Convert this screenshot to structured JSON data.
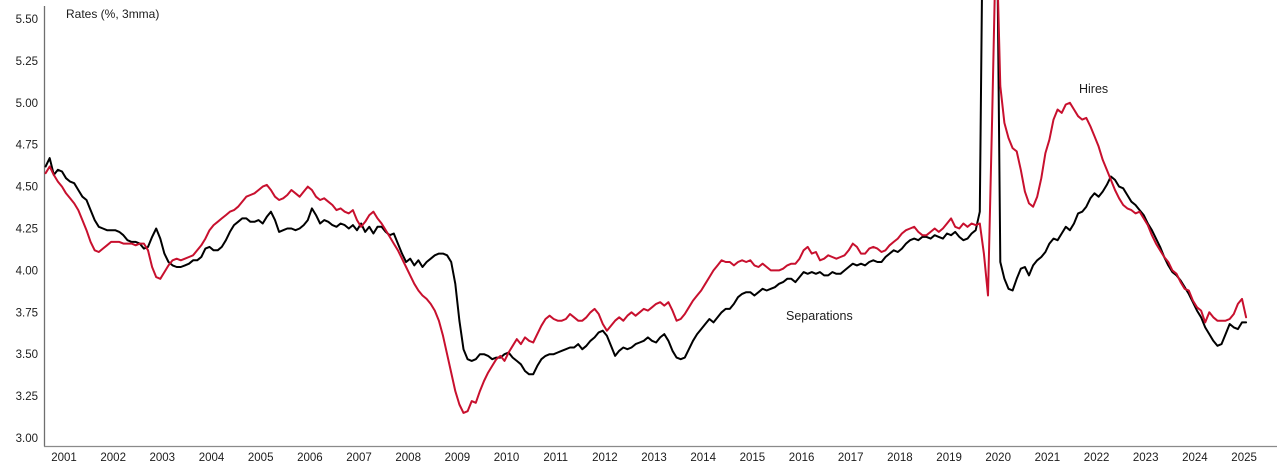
{
  "chart_data": {
    "type": "line",
    "title": "Rates (%, 3mma)",
    "frequency": "monthly",
    "start": {
      "year": 2001,
      "month": 2
    },
    "end": {
      "year": 2025,
      "month": 7
    },
    "x_tick_years": [
      "2001",
      "2002",
      "2003",
      "2004",
      "2005",
      "2006",
      "2007",
      "2008",
      "2009",
      "2010",
      "2011",
      "2012",
      "2013",
      "2014",
      "2015",
      "2016",
      "2017",
      "2018",
      "2019",
      "2020",
      "2021",
      "2022",
      "2023",
      "2024",
      "2025"
    ],
    "y_axis": {
      "min": 3.0,
      "max": 5.5,
      "tick_step": 0.25,
      "tick_labels": [
        "3.00",
        "3.25",
        "3.50",
        "3.75",
        "4.00",
        "4.25",
        "4.50",
        "4.75",
        "5.00",
        "5.25",
        "5.50"
      ]
    },
    "legend_position": "inline-annotations",
    "grid": false,
    "series": [
      {
        "name": "Hires",
        "color": "#c8102e",
        "values": [
          4.58,
          4.62,
          4.57,
          4.53,
          4.5,
          4.46,
          4.43,
          4.4,
          4.36,
          4.3,
          4.24,
          4.17,
          4.12,
          4.11,
          4.13,
          4.15,
          4.17,
          4.17,
          4.17,
          4.16,
          4.16,
          4.16,
          4.15,
          4.16,
          4.16,
          4.12,
          4.02,
          3.96,
          3.95,
          3.99,
          4.03,
          4.06,
          4.07,
          4.06,
          4.07,
          4.08,
          4.09,
          4.12,
          4.15,
          4.19,
          4.24,
          4.27,
          4.29,
          4.31,
          4.33,
          4.35,
          4.36,
          4.38,
          4.41,
          4.44,
          4.45,
          4.46,
          4.48,
          4.5,
          4.51,
          4.48,
          4.44,
          4.42,
          4.43,
          4.45,
          4.48,
          4.46,
          4.44,
          4.47,
          4.5,
          4.48,
          4.44,
          4.42,
          4.43,
          4.41,
          4.39,
          4.36,
          4.37,
          4.35,
          4.34,
          4.36,
          4.3,
          4.26,
          4.29,
          4.33,
          4.35,
          4.31,
          4.28,
          4.24,
          4.2,
          4.16,
          4.12,
          4.07,
          4.02,
          3.97,
          3.92,
          3.88,
          3.85,
          3.83,
          3.8,
          3.76,
          3.7,
          3.61,
          3.5,
          3.39,
          3.28,
          3.2,
          3.15,
          3.16,
          3.22,
          3.21,
          3.28,
          3.34,
          3.39,
          3.43,
          3.47,
          3.49,
          3.46,
          3.51,
          3.55,
          3.59,
          3.56,
          3.6,
          3.58,
          3.57,
          3.62,
          3.67,
          3.71,
          3.73,
          3.71,
          3.7,
          3.7,
          3.71,
          3.74,
          3.72,
          3.7,
          3.7,
          3.72,
          3.75,
          3.77,
          3.74,
          3.68,
          3.64,
          3.67,
          3.7,
          3.72,
          3.7,
          3.73,
          3.75,
          3.73,
          3.75,
          3.77,
          3.76,
          3.78,
          3.8,
          3.81,
          3.79,
          3.81,
          3.76,
          3.7,
          3.71,
          3.74,
          3.78,
          3.82,
          3.85,
          3.88,
          3.92,
          3.96,
          4.0,
          4.03,
          4.06,
          4.05,
          4.05,
          4.03,
          4.05,
          4.06,
          4.05,
          4.06,
          4.03,
          4.02,
          4.04,
          4.02,
          4.0,
          4.0,
          4.0,
          4.01,
          4.03,
          4.04,
          4.04,
          4.07,
          4.12,
          4.14,
          4.1,
          4.11,
          4.06,
          4.07,
          4.09,
          4.08,
          4.07,
          4.08,
          4.09,
          4.12,
          4.16,
          4.14,
          4.1,
          4.1,
          4.13,
          4.14,
          4.13,
          4.11,
          4.12,
          4.15,
          4.17,
          4.19,
          4.22,
          4.24,
          4.25,
          4.26,
          4.23,
          4.21,
          4.21,
          4.23,
          4.25,
          4.23,
          4.25,
          4.28,
          4.31,
          4.26,
          4.25,
          4.28,
          4.26,
          4.28,
          4.27,
          4.28,
          4.1,
          3.85,
          4.9,
          6.05,
          5.1,
          4.88,
          4.79,
          4.73,
          4.71,
          4.6,
          4.47,
          4.4,
          4.38,
          4.44,
          4.55,
          4.7,
          4.78,
          4.9,
          4.96,
          4.94,
          4.99,
          5.0,
          4.96,
          4.92,
          4.9,
          4.91,
          4.86,
          4.8,
          4.74,
          4.66,
          4.6,
          4.54,
          4.48,
          4.43,
          4.39,
          4.37,
          4.36,
          4.34,
          4.35,
          4.31,
          4.27,
          4.21,
          4.16,
          4.12,
          4.08,
          4.05,
          4.0,
          3.98,
          3.93,
          3.89,
          3.88,
          3.82,
          3.78,
          3.76,
          3.69,
          3.75,
          3.72,
          3.7,
          3.7,
          3.7,
          3.71,
          3.74,
          3.8,
          3.83,
          3.72
        ]
      },
      {
        "name": "Separations",
        "color": "#000000",
        "values": [
          4.62,
          4.67,
          4.57,
          4.6,
          4.59,
          4.55,
          4.53,
          4.52,
          4.48,
          4.44,
          4.42,
          4.36,
          4.3,
          4.26,
          4.25,
          4.24,
          4.24,
          4.24,
          4.23,
          4.21,
          4.18,
          4.17,
          4.17,
          4.16,
          4.13,
          4.14,
          4.2,
          4.25,
          4.19,
          4.1,
          4.05,
          4.03,
          4.02,
          4.02,
          4.03,
          4.04,
          4.06,
          4.06,
          4.08,
          4.13,
          4.14,
          4.12,
          4.12,
          4.14,
          4.18,
          4.23,
          4.27,
          4.29,
          4.31,
          4.31,
          4.29,
          4.29,
          4.3,
          4.28,
          4.32,
          4.35,
          4.3,
          4.23,
          4.24,
          4.25,
          4.25,
          4.24,
          4.25,
          4.27,
          4.3,
          4.37,
          4.33,
          4.28,
          4.3,
          4.29,
          4.27,
          4.26,
          4.28,
          4.27,
          4.25,
          4.27,
          4.24,
          4.28,
          4.23,
          4.26,
          4.22,
          4.26,
          4.26,
          4.23,
          4.21,
          4.22,
          4.16,
          4.1,
          4.05,
          4.07,
          4.03,
          4.06,
          4.02,
          4.05,
          4.07,
          4.09,
          4.1,
          4.1,
          4.09,
          4.05,
          3.92,
          3.7,
          3.53,
          3.47,
          3.46,
          3.47,
          3.5,
          3.5,
          3.49,
          3.47,
          3.48,
          3.48,
          3.5,
          3.51,
          3.48,
          3.46,
          3.44,
          3.4,
          3.38,
          3.38,
          3.43,
          3.47,
          3.49,
          3.5,
          3.5,
          3.51,
          3.52,
          3.53,
          3.54,
          3.54,
          3.56,
          3.53,
          3.55,
          3.58,
          3.6,
          3.63,
          3.64,
          3.61,
          3.55,
          3.49,
          3.52,
          3.54,
          3.53,
          3.54,
          3.56,
          3.57,
          3.58,
          3.6,
          3.58,
          3.57,
          3.6,
          3.62,
          3.58,
          3.52,
          3.48,
          3.47,
          3.48,
          3.53,
          3.58,
          3.62,
          3.65,
          3.68,
          3.71,
          3.69,
          3.72,
          3.75,
          3.77,
          3.77,
          3.8,
          3.84,
          3.86,
          3.87,
          3.87,
          3.85,
          3.87,
          3.89,
          3.88,
          3.89,
          3.9,
          3.92,
          3.93,
          3.95,
          3.95,
          3.93,
          3.96,
          3.99,
          3.98,
          3.99,
          3.98,
          3.99,
          3.97,
          3.97,
          3.99,
          3.98,
          3.98,
          4.0,
          4.02,
          4.04,
          4.03,
          4.04,
          4.03,
          4.05,
          4.06,
          4.05,
          4.05,
          4.08,
          4.1,
          4.12,
          4.11,
          4.13,
          4.16,
          4.18,
          4.19,
          4.18,
          4.2,
          4.2,
          4.19,
          4.21,
          4.2,
          4.19,
          4.22,
          4.21,
          4.23,
          4.2,
          4.18,
          4.19,
          4.22,
          4.24,
          4.35,
          6.8,
          9.3,
          8.8,
          6.6,
          4.05,
          3.95,
          3.89,
          3.88,
          3.95,
          4.01,
          4.02,
          3.97,
          4.03,
          4.06,
          4.08,
          4.11,
          4.16,
          4.19,
          4.18,
          4.22,
          4.26,
          4.24,
          4.28,
          4.34,
          4.35,
          4.38,
          4.43,
          4.46,
          4.44,
          4.47,
          4.51,
          4.56,
          4.54,
          4.5,
          4.49,
          4.45,
          4.41,
          4.39,
          4.36,
          4.33,
          4.28,
          4.24,
          4.19,
          4.14,
          4.08,
          4.03,
          3.99,
          3.97,
          3.94,
          3.9,
          3.86,
          3.81,
          3.76,
          3.72,
          3.66,
          3.62,
          3.58,
          3.55,
          3.56,
          3.62,
          3.68,
          3.66,
          3.65,
          3.69,
          3.69
        ]
      }
    ]
  }
}
